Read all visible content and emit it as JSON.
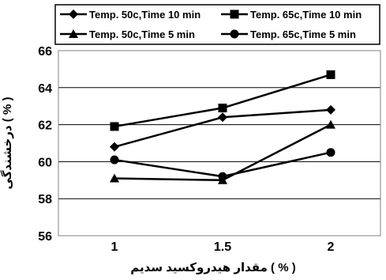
{
  "chart_data": {
    "type": "line",
    "title": "",
    "xlabel": "مقدار هیدروکسید سدیم ( % )",
    "ylabel": "درخشندگی ( % )",
    "categories": [
      "1",
      "1.5",
      "2"
    ],
    "x": [
      1,
      1.5,
      2
    ],
    "ylim": [
      56,
      66
    ],
    "yticks": [
      "56",
      "58",
      "60",
      "62",
      "64",
      "66"
    ],
    "grid": true,
    "legend_position": "top",
    "series": [
      {
        "name": "Temp. 50c,Time 10 min",
        "marker": "diamond",
        "values": [
          60.8,
          62.4,
          62.8
        ]
      },
      {
        "name": "Temp. 65c,Time 10 min",
        "marker": "square",
        "values": [
          61.9,
          62.9,
          64.7
        ]
      },
      {
        "name": "Temp. 50c,Time 5 min",
        "marker": "triangle",
        "values": [
          59.1,
          59.0,
          62.0
        ]
      },
      {
        "name": "Temp. 65c,Time 5 min",
        "marker": "circle",
        "values": [
          60.1,
          59.2,
          60.5
        ]
      }
    ],
    "colors": {
      "line": "#000000",
      "grid": "#000000",
      "frame": "#808080"
    }
  }
}
